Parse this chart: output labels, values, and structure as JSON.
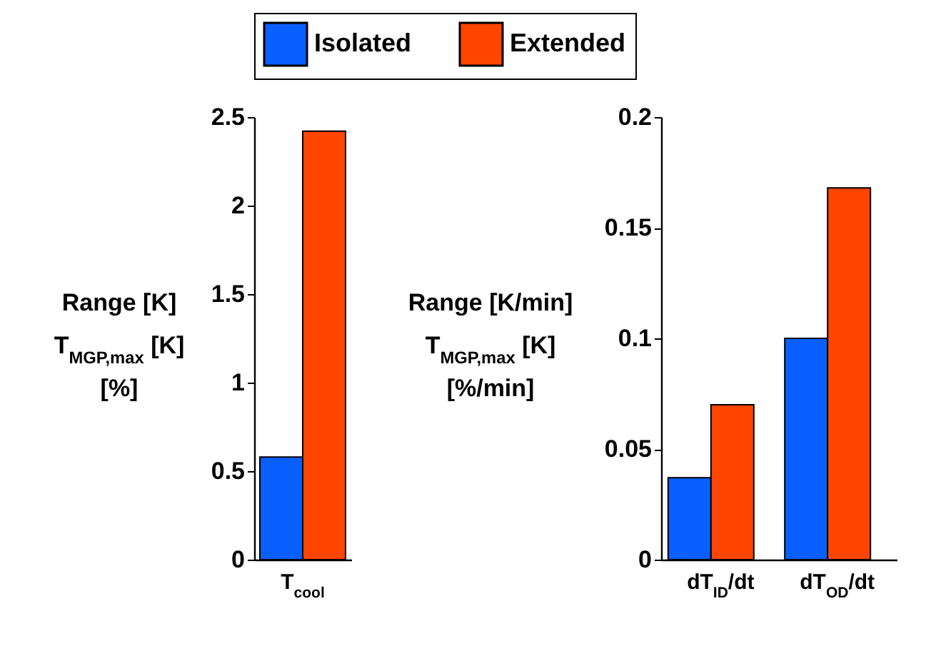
{
  "chart_data": [
    {
      "type": "bar",
      "ylabel": "Range [K]\nT$_{MGP,max}$ [K]\n[%]",
      "categories": [
        "T$_{cool}$"
      ],
      "series": [
        {
          "name": "Isolated",
          "color": "#0a5fff",
          "values": [
            0.58
          ]
        },
        {
          "name": "Extended",
          "color": "#ff4500",
          "values": [
            2.42
          ]
        }
      ],
      "ylim": [
        0,
        2.5
      ],
      "yticks": [
        0,
        0.5,
        1,
        1.5,
        2,
        2.5
      ],
      "legend": "top"
    },
    {
      "type": "bar",
      "ylabel": "Range [K/min]\nT$_{MGP,max}$ [K]\n[%/min]",
      "categories": [
        "dT$_{ID}$/dt",
        "dT$_{OD}$/dt"
      ],
      "series": [
        {
          "name": "Isolated",
          "color": "#0a5fff",
          "values": [
            0.037,
            0.1
          ]
        },
        {
          "name": "Extended",
          "color": "#ff4500",
          "values": [
            0.07,
            0.168
          ]
        }
      ],
      "ylim": [
        0,
        0.2
      ],
      "yticks": [
        0,
        0.05,
        0.1,
        0.15,
        0.2
      ],
      "legend": "top"
    }
  ]
}
